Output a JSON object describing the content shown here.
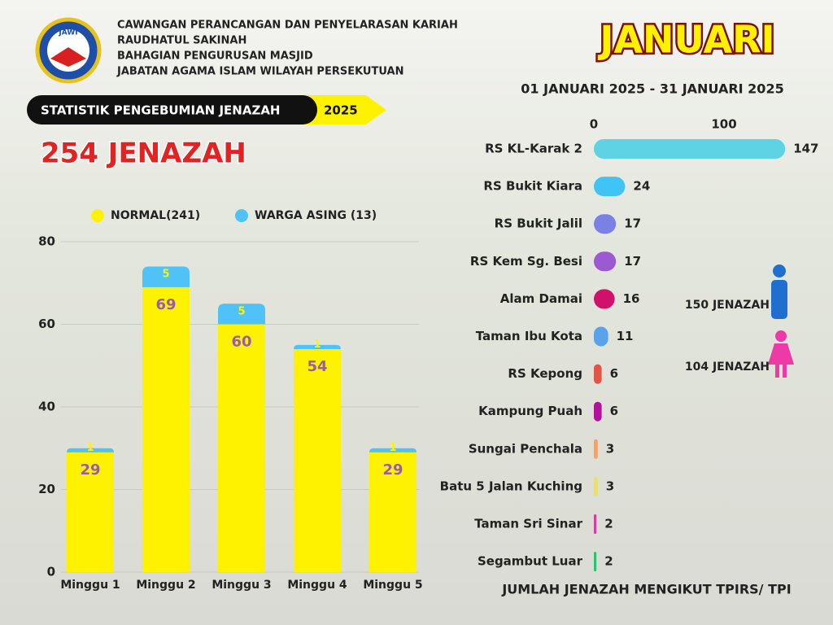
{
  "header": {
    "lines": [
      "CAWANGAN PERANCANGAN DAN PENYELARASAN KARIAH",
      "RAUDHATUL SAKINAH",
      "BAHAGIAN PENGURUSAN MASJID",
      "JABATAN AGAMA ISLAM WILAYAH PERSEKUTUAN"
    ],
    "logo": "JAWI",
    "banner": "STATISTIK PENGEBUMIAN JENAZAH",
    "year": "2025",
    "total": "254 JENAZAH",
    "month": "JANUARI",
    "period": "01 JANUARI 2025 - 31 JANUARI 2025"
  },
  "gender": {
    "male": "150 JENAZAH",
    "female": "104 JENAZAH"
  },
  "chart_data": [
    {
      "type": "stacked_bar",
      "categories": [
        "Minggu 1",
        "Minggu 2",
        "Minggu 3",
        "Minggu 4",
        "Minggu 5"
      ],
      "series": [
        {
          "name": "NORMAL(241)",
          "color": "#fff200",
          "label_color": "#9b59b6",
          "values": [
            29,
            69,
            60,
            54,
            29
          ]
        },
        {
          "name": "WARGA ASING (13)",
          "color": "#4fc3f7",
          "label_color": "#fff200",
          "values": [
            1,
            5,
            5,
            1,
            1
          ]
        }
      ],
      "ylim": [
        0,
        80
      ],
      "yticks": [
        0,
        20,
        40,
        60,
        80
      ],
      "grid": true
    },
    {
      "type": "hbar",
      "title": "JUMLAH JENAZAH MENGIKUT TPIRS/ TPI",
      "categories": [
        "RS KL-Karak 2",
        "RS Bukit Kiara",
        "RS Bukit Jalil",
        "RS Kem Sg. Besi",
        "Alam Damai",
        "Taman Ibu Kota",
        "RS Kepong",
        "Kampung Puah",
        "Sungai Penchala",
        "Batu 5 Jalan Kuching",
        "Taman Sri Sinar",
        "Segambut Luar"
      ],
      "values": [
        147,
        24,
        17,
        17,
        16,
        11,
        6,
        6,
        3,
        3,
        2,
        2
      ],
      "colors": [
        "#5ed3e3",
        "#40c4f5",
        "#7b80e4",
        "#9b5ad2",
        "#d0106a",
        "#5aa2ea",
        "#e05545",
        "#b0129c",
        "#f2a36a",
        "#e8e070",
        "#d040a0",
        "#2fc070"
      ],
      "xlim": [
        0,
        150
      ],
      "xticks": [
        0,
        100
      ]
    }
  ]
}
